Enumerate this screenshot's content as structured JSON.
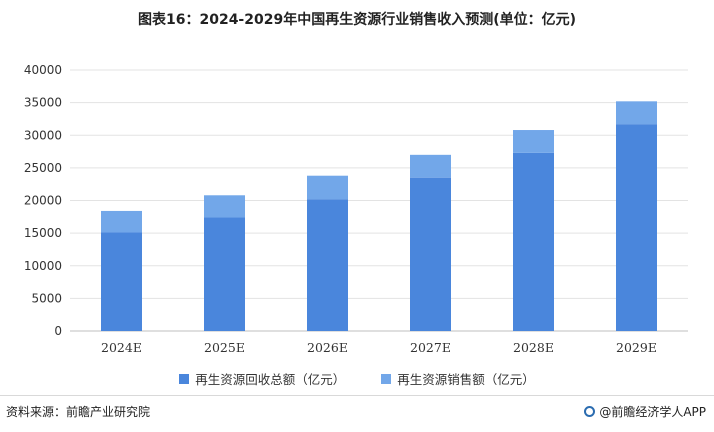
{
  "title": "图表16：2024-2029年中国再生资源行业销售收入预测(单位：亿元)",
  "source": "资料来源：前瞻产业研究院",
  "brand": "@前瞻经济学人APP",
  "colors": {
    "bottom": "#4a86dc",
    "top": "#72a7e9",
    "grid": "#e3e3e3",
    "axis": "#bfbfbf"
  },
  "chart_data": {
    "type": "bar",
    "stacked": true,
    "categories": [
      "2024E",
      "2025E",
      "2026E",
      "2027E",
      "2028E",
      "2029E"
    ],
    "series": [
      {
        "name": "再生资源回收总额（亿元）",
        "values": [
          15100,
          17400,
          20200,
          23500,
          27300,
          31700
        ]
      },
      {
        "name": "再生资源销售额（亿元）",
        "values": [
          3300,
          3400,
          3600,
          3500,
          3500,
          3500
        ]
      }
    ],
    "ylim": [
      0,
      40000
    ],
    "yticks": [
      "0",
      "5000",
      "10000",
      "15000",
      "20000",
      "25000",
      "30000",
      "35000",
      "40000"
    ],
    "grid": true,
    "legend": "bottom"
  }
}
